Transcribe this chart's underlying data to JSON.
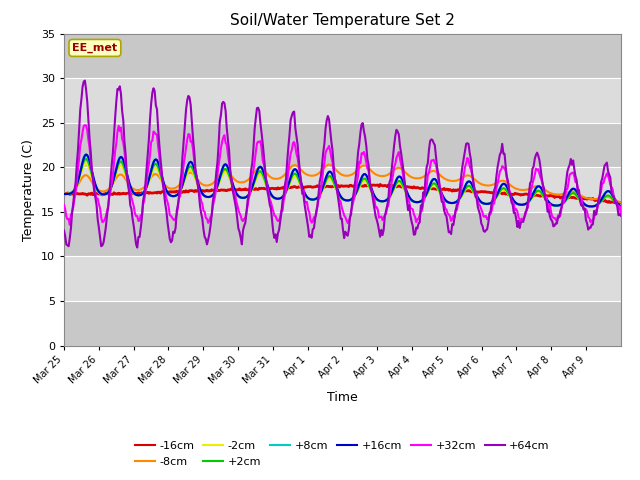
{
  "title": "Soil/Water Temperature Set 2",
  "xlabel": "Time",
  "ylabel": "Temperature (C)",
  "ylim": [
    0,
    35
  ],
  "yticks": [
    0,
    5,
    10,
    15,
    20,
    25,
    30,
    35
  ],
  "annotation": "EE_met",
  "plot_bg": "#dcdcdc",
  "series_colors": {
    "-16cm": "#dd0000",
    "-8cm": "#ff8800",
    "-2cm": "#eeee00",
    "+2cm": "#00cc00",
    "+8cm": "#00cccc",
    "+16cm": "#0000cc",
    "+32cm": "#ff00ff",
    "+64cm": "#9900bb"
  },
  "tick_labels": [
    "Mar 25",
    "Mar 26",
    "Mar 27",
    "Mar 28",
    "Mar 29",
    "Mar 30",
    "Mar 31",
    "Apr 1",
    "Apr 2",
    "Apr 3",
    "Apr 4",
    "Apr 5",
    "Apr 6",
    "Apr 7",
    "Apr 8",
    "Apr 9"
  ],
  "n_points": 480,
  "days": 16
}
